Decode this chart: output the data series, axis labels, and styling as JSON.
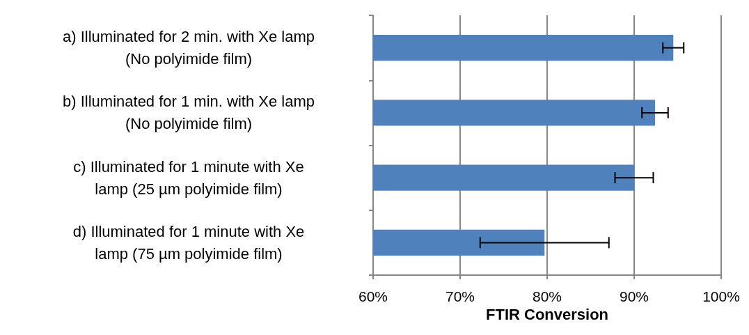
{
  "chart_data": {
    "type": "bar",
    "orientation": "horizontal",
    "xlabel": "FTIR Conversion",
    "categories": [
      "a) Illuminated for 2 min. with Xe lamp\n(No polyimide film)",
      "b) Illuminated for 1 min. with Xe lamp\n(No polyimide film)",
      "c) Illuminated for 1 minute with Xe\nlamp (25 µm polyimide film)",
      "d) Illuminated for 1 minute with Xe\nlamp (75 µm polyimide film)"
    ],
    "values": [
      94.5,
      92.4,
      90.0,
      79.7
    ],
    "errors": [
      1.2,
      1.5,
      2.2,
      7.4
    ],
    "color": "#4f81bd",
    "xlim": [
      60,
      100
    ],
    "xticks": [
      {
        "value": 60,
        "label": "60%"
      },
      {
        "value": 70,
        "label": "70%"
      },
      {
        "value": 80,
        "label": "80%"
      },
      {
        "value": 90,
        "label": "90%"
      },
      {
        "value": 100,
        "label": "100%"
      }
    ],
    "grid": "x"
  }
}
